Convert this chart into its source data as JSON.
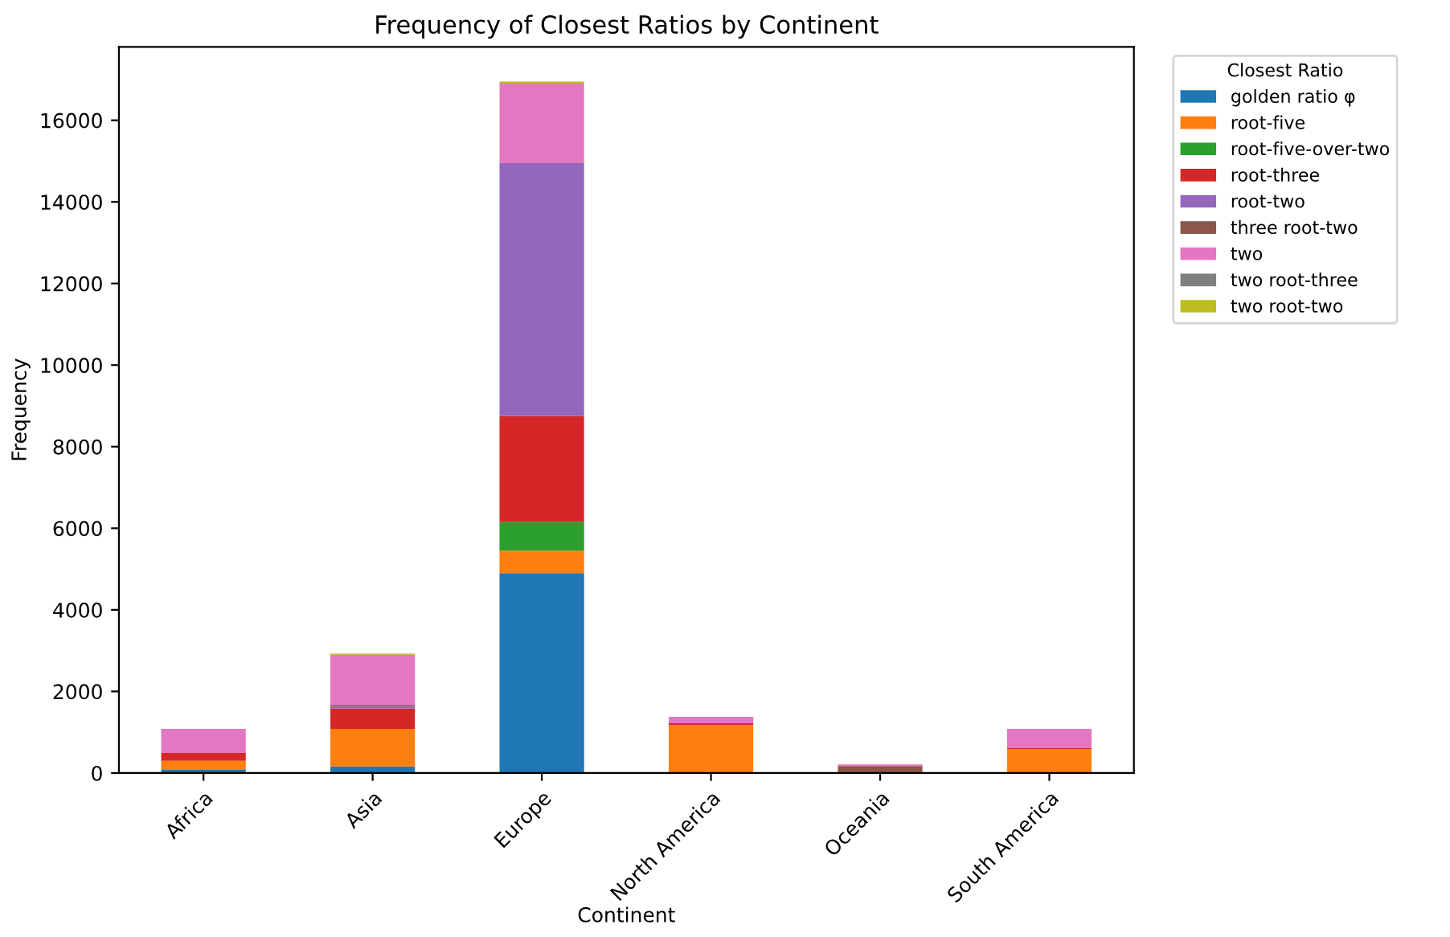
{
  "chart_data": {
    "type": "bar",
    "stacked": true,
    "title": "Frequency of Closest Ratios by Continent",
    "xlabel": "Continent",
    "ylabel": "Frequency",
    "legend_title": "Closest Ratio",
    "legend": "top right",
    "grid": false,
    "categories": [
      "Africa",
      "Asia",
      "Europe",
      "North America",
      "Oceania",
      "South America"
    ],
    "ylim": [
      0,
      17800
    ],
    "yticks": [
      0,
      2000,
      4000,
      6000,
      8000,
      10000,
      12000,
      14000,
      16000
    ],
    "series": [
      {
        "name": "golden ratio φ",
        "color": "#1f77b4",
        "values": [
          80,
          160,
          4900,
          10,
          0,
          10
        ]
      },
      {
        "name": "root-five",
        "color": "#ff7f0e",
        "values": [
          220,
          920,
          550,
          1170,
          20,
          580
        ]
      },
      {
        "name": "root-five-over-two",
        "color": "#2ca02c",
        "values": [
          0,
          null,
          700,
          0,
          0,
          0
        ]
      },
      {
        "name": "root-three",
        "color": "#d62728",
        "values": [
          190,
          500,
          2600,
          40,
          0,
          20
        ]
      },
      {
        "name": "root-two",
        "color": "#9467bd",
        "values": [
          null,
          50,
          6200,
          0,
          0,
          0
        ]
      },
      {
        "name": "three root-two",
        "color": "#8c564b",
        "values": [
          0,
          40,
          null,
          0,
          150,
          0
        ]
      },
      {
        "name": "two",
        "color": "#e377c2",
        "values": [
          590,
          1230,
          1950,
          160,
          40,
          470
        ]
      },
      {
        "name": "two root-three",
        "color": "#7f7f7f",
        "values": [
          0,
          null,
          null,
          0,
          0,
          0
        ]
      },
      {
        "name": "two root-two",
        "color": "#bcbd22",
        "values": [
          0,
          30,
          50,
          0,
          0,
          0
        ]
      }
    ]
  }
}
